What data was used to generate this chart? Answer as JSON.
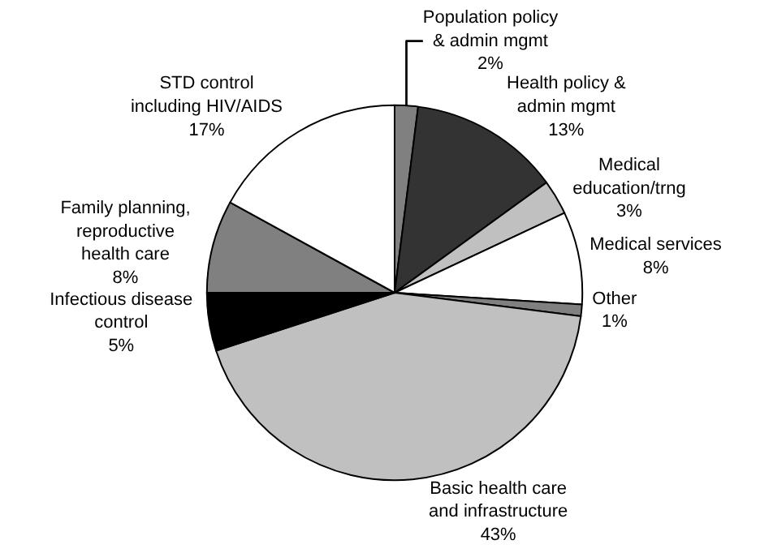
{
  "chart_data": {
    "type": "pie",
    "categories": [
      "Population policy\n& admin mgmt",
      "Health policy &\nadmin mgmt",
      "Medical\neducation/trng",
      "Medical services",
      "Other",
      "Basic health care\nand infrastructure",
      "Infectious disease\ncontrol",
      "Family planning,\nreproductive\nhealth care",
      "STD control\nincluding HIV/AIDS"
    ],
    "values": [
      2,
      13,
      3,
      8,
      1,
      43,
      5,
      8,
      17
    ],
    "value_labels": [
      "2%",
      "13%",
      "3%",
      "8%",
      "1%",
      "43%",
      "5%",
      "8%",
      "17%"
    ],
    "colors": [
      "#808080",
      "#333333",
      "#c0c0c0",
      "#ffffff",
      "#808080",
      "#c0c0c0",
      "#000000",
      "#808080",
      "#ffffff"
    ],
    "legend": false
  }
}
